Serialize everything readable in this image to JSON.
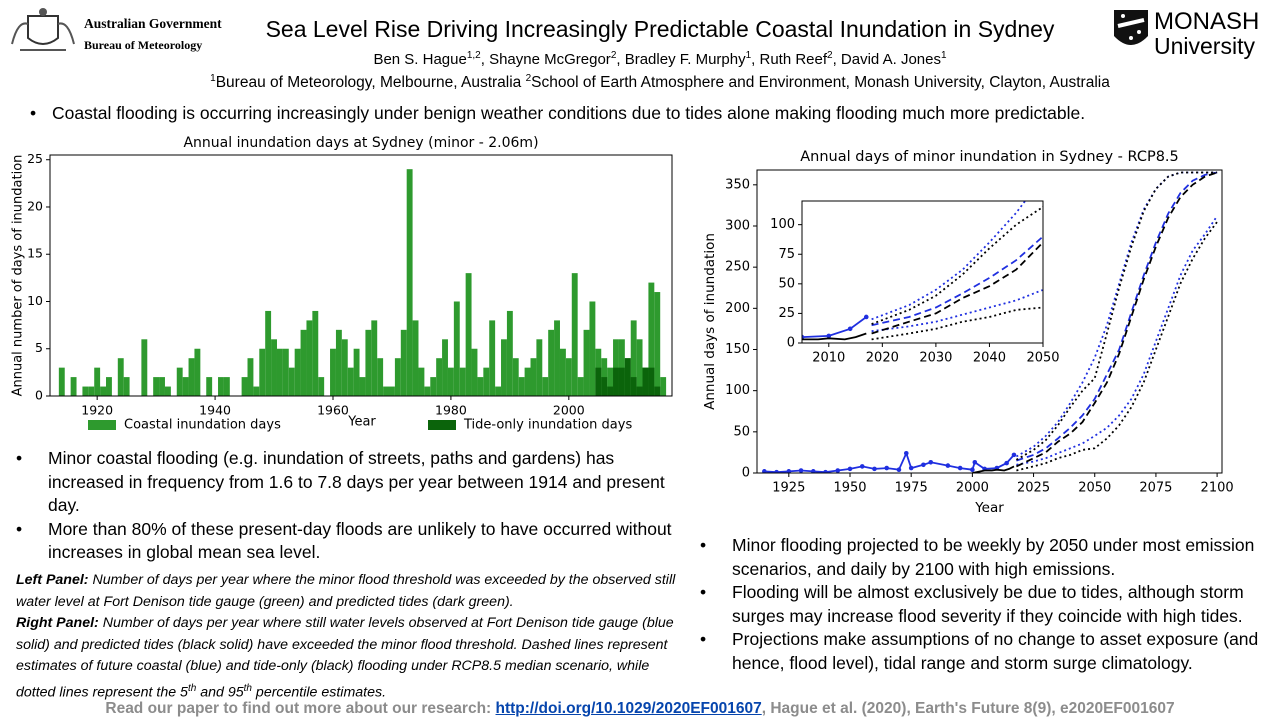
{
  "header": {
    "org_left": [
      "Australian Government",
      "Bureau of Meteorology"
    ],
    "org_right": [
      "MONASH",
      "University"
    ],
    "title": "Sea Level Rise Driving Increasingly Predictable Coastal Inundation in Sydney",
    "authors": [
      {
        "name": "Ben S. Hague",
        "sup": "1,2"
      },
      {
        "name": ",  Shayne McGregor",
        "sup": "2"
      },
      {
        "name": ",  Bradley F. Murphy",
        "sup": "1"
      },
      {
        "name": ", Ruth Reef",
        "sup": "2"
      },
      {
        "name": ",  David A. Jones",
        "sup": "1"
      }
    ],
    "affiliations": [
      {
        "sup": "1",
        "text": "Bureau of Meteorology, Melbourne, Australia "
      },
      {
        "sup": "2",
        "text": "School of Earth Atmosphere and Environment, Monash University, Clayton, Australia"
      }
    ]
  },
  "intro": [
    "Coastal flooding is occurring increasingly under benign weather conditions due to tides alone making flooding much more predictable."
  ],
  "left_bullets": [
    "Minor coastal flooding (e.g. inundation of streets, paths and gardens) has increased in frequency from 1.6 to 7.8 days per year between 1914 and present day.",
    "More than 80% of these present-day floods are unlikely to have occurred without increases in global mean sea level."
  ],
  "right_bullets": [
    "Minor flooding projected to be weekly by 2050 under most emission scenarios, and daily by 2100 with high emissions.",
    "Flooding will be almost exclusively be due to tides, although storm surges may increase flood severity if they coincide with high tides.",
    "Projections make assumptions of no change to asset exposure (and hence, flood level), tidal range and storm surge climatology."
  ],
  "captions": [
    {
      "label": "Left Panel:",
      "segments": [
        {
          "text": " Number of days per year where the minor flood threshold was exceeded by the observed still water level at Fort Denison tide gauge (green) and predicted tides (dark green).",
          "sup": false
        }
      ]
    },
    {
      "label": "Right Panel:",
      "segments": [
        {
          "text": " Number of days per year where still water levels observed at Fort Denison tide gauge (blue solid) and predicted tides (black solid) have exceeded the minor flood threshold. Dashed lines represent estimates of future coastal (blue) and tide-only (black) flooding under RCP8.5 median scenario, while dotted lines represent the 5",
          "sup": false
        },
        {
          "text": "th",
          "sup": true
        },
        {
          "text": " and 95",
          "sup": false
        },
        {
          "text": "th",
          "sup": true
        },
        {
          "text": " percentile estimates.",
          "sup": false
        }
      ]
    }
  ],
  "footer": {
    "lead": "Read our paper to find out more about our research: ",
    "link": "http://doi.org/10.1029/2020EF001607",
    "tail": ", Hague et al. (2020), Earth's Future 8(9), e2020EF001607"
  },
  "chart_data": [
    {
      "type": "bar",
      "title": "Annual inundation days at Sydney (minor - 2.06m)",
      "x_label": "Year",
      "y_label": "Annual number of days of inundation",
      "legend": "bottom",
      "x": [
        1914,
        1915,
        1916,
        1917,
        1918,
        1919,
        1920,
        1921,
        1922,
        1923,
        1924,
        1925,
        1926,
        1927,
        1928,
        1929,
        1930,
        1931,
        1932,
        1933,
        1934,
        1935,
        1936,
        1937,
        1938,
        1939,
        1940,
        1941,
        1942,
        1943,
        1944,
        1945,
        1946,
        1947,
        1948,
        1949,
        1950,
        1951,
        1952,
        1953,
        1954,
        1955,
        1956,
        1957,
        1958,
        1959,
        1960,
        1961,
        1962,
        1963,
        1964,
        1965,
        1966,
        1967,
        1968,
        1969,
        1970,
        1971,
        1972,
        1973,
        1974,
        1975,
        1976,
        1977,
        1978,
        1979,
        1980,
        1981,
        1982,
        1983,
        1984,
        1985,
        1986,
        1987,
        1988,
        1989,
        1990,
        1991,
        1992,
        1993,
        1994,
        1995,
        1996,
        1997,
        1998,
        1999,
        2000,
        2001,
        2002,
        2003,
        2004,
        2005,
        2006,
        2007,
        2008,
        2009,
        2010,
        2011,
        2012,
        2013,
        2014,
        2015,
        2016
      ],
      "series": [
        {
          "name": "Coastal inundation days",
          "color": "#2e9a2e",
          "values": [
            3,
            0,
            2,
            0,
            1,
            1,
            3,
            1,
            2,
            0,
            4,
            2,
            0,
            0,
            6,
            0,
            2,
            2,
            1,
            0,
            3,
            2,
            4,
            5,
            0,
            2,
            0,
            2,
            2,
            0,
            0,
            2,
            4,
            1,
            5,
            9,
            6,
            5,
            5,
            3,
            5,
            7,
            8,
            9,
            2,
            0,
            5,
            7,
            6,
            3,
            5,
            2,
            7,
            8,
            4,
            1,
            1,
            4,
            7,
            24,
            8,
            3,
            1,
            2,
            4,
            6,
            3,
            10,
            3,
            13,
            5,
            2,
            3,
            8,
            1,
            6,
            9,
            4,
            2,
            3,
            4,
            6,
            2,
            7,
            8,
            5,
            4,
            13,
            2,
            7,
            10,
            5,
            4,
            3,
            6,
            6,
            4,
            8,
            6,
            3,
            12,
            11,
            2
          ]
        },
        {
          "name": "Tide-only inundation days",
          "color": "#0b640b",
          "values": [
            0,
            0,
            0,
            0,
            0,
            0,
            0,
            0,
            0,
            0,
            0,
            0,
            0,
            0,
            0,
            0,
            0,
            0,
            0,
            0,
            0,
            0,
            0,
            0,
            0,
            0,
            0,
            0,
            0,
            0,
            0,
            0,
            0,
            0,
            0,
            0,
            0,
            0,
            0,
            0,
            0,
            0,
            0,
            0,
            0,
            0,
            0,
            0,
            0,
            0,
            0,
            0,
            0,
            0,
            0,
            0,
            0,
            0,
            0,
            0,
            0,
            0,
            0,
            0,
            0,
            0,
            0,
            0,
            0,
            0,
            0,
            0,
            0,
            0,
            0,
            0,
            0,
            0,
            0,
            0,
            0,
            0,
            0,
            0,
            0,
            0,
            0,
            0,
            0,
            0,
            0,
            3,
            2,
            1,
            3,
            3,
            4,
            2,
            1,
            3,
            3,
            1,
            0
          ]
        }
      ],
      "xlim": [
        1912,
        2017.5
      ],
      "xticks": [
        1920,
        1940,
        1960,
        1980,
        2000
      ],
      "ylim": [
        0,
        25.5
      ],
      "yticks": [
        0,
        5,
        10,
        15,
        20,
        25
      ]
    },
    {
      "type": "line",
      "title": "Annual days of minor inundation in Sydney - RCP8.5",
      "x_label": "Year",
      "y_label": "Annual days of inundation",
      "xlim": [
        1912,
        2102
      ],
      "xticks": [
        1925,
        1950,
        1975,
        2000,
        2025,
        2050,
        2075,
        2100
      ],
      "ylim": [
        0,
        368
      ],
      "yticks": [
        0,
        50,
        100,
        150,
        200,
        250,
        300,
        350
      ],
      "series": [
        {
          "color": "#1f2fe0",
          "style": "solid",
          "markers": true,
          "x": [
            1915,
            1920,
            1925,
            1930,
            1935,
            1940,
            1945,
            1950,
            1955,
            1960,
            1965,
            1970,
            1973,
            1975,
            1980,
            1983,
            1990,
            1995,
            2000,
            2001,
            2005,
            2010,
            2014,
            2017
          ],
          "values": [
            2,
            1,
            2,
            3,
            2,
            1,
            3,
            5,
            8,
            5,
            6,
            4,
            24,
            6,
            10,
            13,
            9,
            6,
            4,
            13,
            5,
            6,
            12,
            22
          ]
        },
        {
          "color": "#000000",
          "style": "solid",
          "markers": false,
          "x": [
            2000,
            2005,
            2008,
            2010,
            2013,
            2015,
            2017
          ],
          "values": [
            0,
            3,
            3,
            4,
            3,
            5,
            8
          ]
        },
        {
          "color": "#1f2fe0",
          "style": "dashed",
          "markers": false,
          "x": [
            2018,
            2025,
            2030,
            2035,
            2040,
            2045,
            2050,
            2055,
            2060,
            2065,
            2070,
            2075,
            2080,
            2085,
            2090,
            2095,
            2100
          ],
          "values": [
            15,
            22,
            30,
            42,
            55,
            70,
            90,
            120,
            150,
            195,
            240,
            280,
            315,
            340,
            355,
            362,
            365
          ]
        },
        {
          "color": "#1f2fe0",
          "style": "dotted",
          "markers": false,
          "x": [
            2018,
            2025,
            2030,
            2035,
            2040,
            2045,
            2050,
            2055,
            2060,
            2065,
            2070,
            2075,
            2080,
            2085,
            2090,
            2095,
            2100
          ],
          "values": [
            10,
            14,
            18,
            24,
            30,
            36,
            45,
            55,
            70,
            90,
            120,
            160,
            200,
            240,
            270,
            290,
            312
          ]
        },
        {
          "color": "#1f2fe0",
          "style": "dotted",
          "markers": false,
          "x": [
            2018,
            2025,
            2030,
            2035,
            2040,
            2045,
            2050,
            2055,
            2060,
            2065,
            2070,
            2075,
            2080,
            2085,
            2090,
            2100
          ],
          "values": [
            20,
            32,
            45,
            62,
            85,
            110,
            140,
            180,
            230,
            280,
            320,
            345,
            360,
            365,
            365,
            365
          ]
        },
        {
          "color": "#000000",
          "style": "dashed",
          "markers": false,
          "x": [
            2018,
            2025,
            2030,
            2035,
            2040,
            2045,
            2050,
            2055,
            2060,
            2065,
            2070,
            2075,
            2080,
            2085,
            2090,
            2095,
            2100
          ],
          "values": [
            8,
            18,
            25,
            38,
            48,
            62,
            85,
            110,
            145,
            190,
            235,
            275,
            310,
            335,
            350,
            360,
            365
          ]
        },
        {
          "color": "#000000",
          "style": "dotted",
          "markers": false,
          "x": [
            2018,
            2025,
            2030,
            2035,
            2040,
            2045,
            2050,
            2055,
            2060,
            2065,
            2070,
            2075,
            2080,
            2085,
            2090,
            2095,
            2100
          ],
          "values": [
            3,
            8,
            12,
            18,
            22,
            28,
            30,
            42,
            58,
            80,
            110,
            150,
            190,
            230,
            260,
            285,
            305
          ]
        },
        {
          "color": "#000000",
          "style": "dotted",
          "markers": false,
          "x": [
            2018,
            2025,
            2030,
            2035,
            2040,
            2045,
            2050,
            2055,
            2060,
            2065,
            2070,
            2075,
            2080,
            2085,
            2100
          ],
          "values": [
            16,
            28,
            40,
            58,
            80,
            100,
            115,
            170,
            225,
            275,
            318,
            345,
            360,
            365,
            365
          ]
        }
      ],
      "inset": {
        "xlim": [
          2005,
          2050
        ],
        "xticks": [
          2010,
          2020,
          2030,
          2040,
          2050
        ],
        "ylim": [
          0,
          120
        ],
        "yticks": [
          0,
          25,
          50,
          75,
          100
        ]
      }
    }
  ]
}
